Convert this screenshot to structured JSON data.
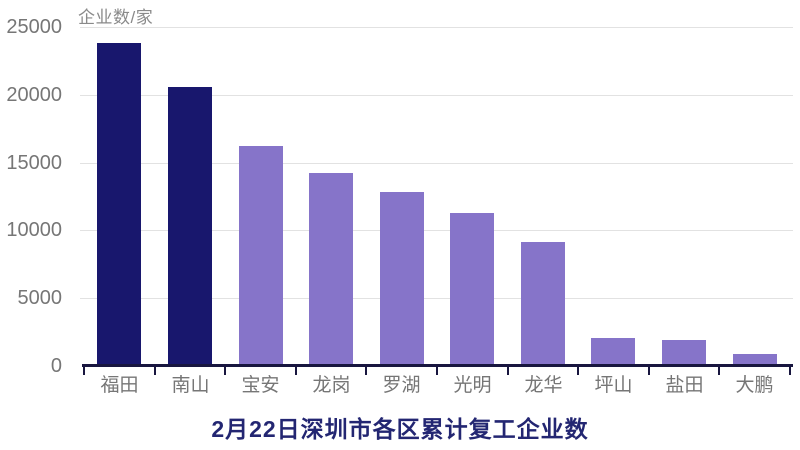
{
  "chart_data": {
    "type": "bar",
    "title": "2月22日深圳市各区累计复工企业数",
    "unit_label": "企业数/家",
    "categories": [
      "福田",
      "南山",
      "宝安",
      "龙岗",
      "罗湖",
      "光明",
      "龙华",
      "坪山",
      "盐田",
      "大鹏"
    ],
    "values": [
      23800,
      20550,
      16250,
      14250,
      12800,
      11300,
      9150,
      2050,
      1950,
      900
    ],
    "ylabel": "企业数/家",
    "xlabel": "",
    "ylim": [
      0,
      25000
    ],
    "y_ticks": [
      0,
      5000,
      10000,
      15000,
      20000,
      25000
    ],
    "grid": true,
    "legend": "none",
    "colors": {
      "highlight_bar": "#18176d",
      "default_bar": "#8674c9",
      "highlight_indices": [
        0,
        1
      ],
      "axis": "#18163f",
      "grid_line": "#e2e2e2",
      "tick_label": "#767676",
      "unit_label": "#8a8a8a",
      "title": "#232672",
      "background": "#ffffff"
    }
  }
}
